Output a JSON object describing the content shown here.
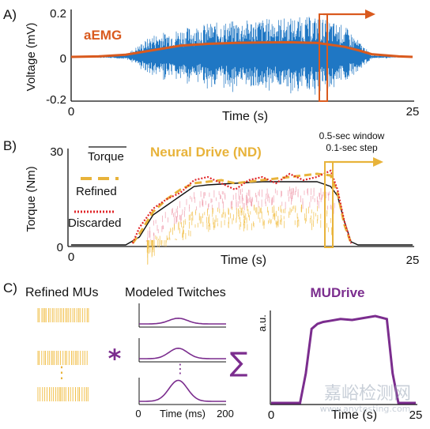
{
  "colors": {
    "emg_blue": "#1f77c4",
    "envelope_orange": "#d95a1e",
    "nd_gold": "#e8b33a",
    "discarded_red": "#e0262a",
    "mudrive_purple": "#7b2d8e",
    "raster_pink": "#f0a0b0",
    "raster_yellow": "#f2c14e"
  },
  "panel_a": {
    "label": "A)",
    "ylabel": "Voltage (mV)",
    "xlabel": "Time (s)",
    "yticks": [
      "0.2",
      "0",
      "-0.2"
    ],
    "xticks": [
      "0",
      "25"
    ],
    "legend": "aEMG",
    "chart_data": {
      "type": "line",
      "xlim": [
        0,
        25
      ],
      "ylim": [
        -0.2,
        0.2
      ],
      "series": [
        {
          "name": "aEMG",
          "x": [
            0,
            2,
            4,
            6,
            8,
            10,
            12,
            14,
            16,
            18,
            20,
            21,
            22,
            24,
            25
          ],
          "y": [
            0,
            0.002,
            0.01,
            0.03,
            0.05,
            0.058,
            0.062,
            0.064,
            0.065,
            0.062,
            0.045,
            0.03,
            0.012,
            0.002,
            0
          ]
        }
      ],
      "emg_envelope": {
        "x": [
          0,
          4,
          6,
          10,
          14,
          18,
          20,
          22,
          25
        ],
        "amp": [
          0,
          0.01,
          0.1,
          0.15,
          0.17,
          0.18,
          0.14,
          0.01,
          0
        ]
      }
    }
  },
  "panel_b": {
    "label": "B)",
    "ylabel": "Torque (Nm)",
    "xlabel": "Time (s)",
    "yticks": [
      "30",
      "0"
    ],
    "xticks": [
      "0",
      "25"
    ],
    "legend": {
      "torque": "Torque",
      "refined": "Refined",
      "discarded": "Discarded",
      "nd": "Neural Drive (ND)"
    },
    "window_note_1": "0.5-sec window",
    "window_note_2": "0.1-sec step",
    "chart_data": {
      "type": "line",
      "xlim": [
        0,
        25
      ],
      "ylim": [
        0,
        30
      ],
      "series": [
        {
          "name": "Torque",
          "x": [
            0,
            4,
            5,
            6,
            7,
            8,
            9,
            10,
            12,
            14,
            16,
            18,
            19,
            19.5,
            20,
            20.5,
            21,
            25
          ],
          "y": [
            0.5,
            0.5,
            3,
            10,
            13,
            16,
            19,
            19.5,
            20,
            20.5,
            20.5,
            20.5,
            19,
            16,
            8,
            1.5,
            0.5,
            0.5
          ]
        },
        {
          "name": "Refined",
          "x": [
            4.5,
            5,
            6,
            7,
            8,
            9,
            10,
            11,
            12,
            13,
            14,
            15,
            16,
            17,
            18,
            19,
            19.5,
            20,
            20.5
          ],
          "y": [
            1,
            4,
            11,
            15,
            18,
            20,
            20.5,
            21,
            20,
            20.5,
            21,
            21.5,
            22,
            22.5,
            23,
            22.5,
            17,
            7,
            1
          ]
        },
        {
          "name": "Discarded",
          "x": [
            4.5,
            5,
            6,
            7,
            8,
            9,
            10,
            11,
            12,
            13,
            14,
            15,
            16,
            17,
            18,
            19,
            19.5,
            20,
            20.5
          ],
          "y": [
            1,
            6,
            12,
            15,
            17,
            21,
            22,
            20,
            18,
            21,
            22,
            20,
            23,
            21,
            22,
            24,
            18,
            8,
            1
          ]
        }
      ]
    }
  },
  "panel_c": {
    "label": "C)",
    "refined_title": "Refined MUs",
    "twitch_title": "Modeled Twitches",
    "twitch_xlabel": "Time (ms)",
    "twitch_xticks": [
      "0",
      "200"
    ],
    "convolve_symbol": "*",
    "sum_symbol": "∑",
    "vdots": "⋮",
    "mudrive_title": "MUDrive",
    "mudrive_ylabel": "a.u.",
    "mudrive_xlabel": "Time (s)",
    "mudrive_xticks": [
      "0",
      "25"
    ],
    "watermark": "嘉峪检测网",
    "watermark_url": "www.anytesting.com",
    "chart_data": {
      "type": "line",
      "twitch_peaks": [
        0.3,
        0.55,
        0.95
      ],
      "twitch_xlim": [
        0,
        200
      ],
      "mudrive": {
        "x": [
          0,
          5,
          6,
          7,
          8,
          9,
          10,
          12,
          14,
          16,
          18,
          20,
          21,
          22,
          25
        ],
        "y": [
          0,
          0,
          0.3,
          0.75,
          0.8,
          0.82,
          0.83,
          0.85,
          0.84,
          0.86,
          0.88,
          0.85,
          0.3,
          0,
          0
        ],
        "xlim": [
          0,
          25
        ]
      }
    }
  }
}
